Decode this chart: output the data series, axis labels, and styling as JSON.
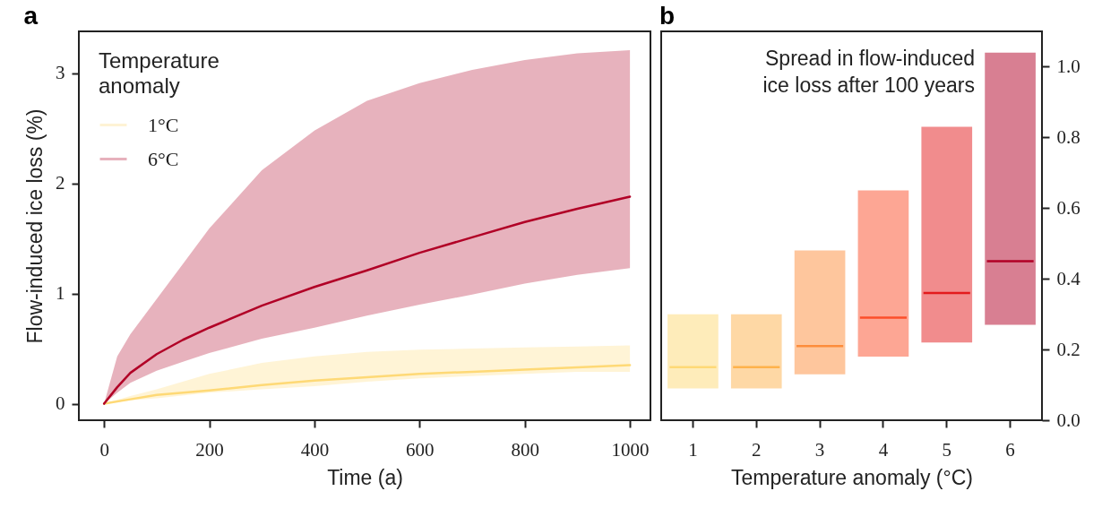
{
  "chart_data": [
    {
      "type": "line",
      "title": "a",
      "xlabel": "Time (a)",
      "ylabel": "Flow-induced ice loss (%)",
      "legend_title": "Temperature anomaly",
      "legend": "top left",
      "grid": false,
      "xlim": [
        -48,
        1039
      ],
      "xticks": [
        0,
        200,
        400,
        600,
        800,
        1000
      ],
      "ylim": [
        -0.15,
        3.38
      ],
      "yticks": [
        0,
        1,
        2,
        3
      ],
      "series": [
        {
          "name": "1°C",
          "color": "#fed976",
          "x": [
            0,
            50,
            100,
            200,
            300,
            400,
            500,
            600,
            700,
            800,
            900,
            1000
          ],
          "values": [
            0,
            0.04,
            0.08,
            0.12,
            0.17,
            0.21,
            0.24,
            0.27,
            0.29,
            0.31,
            0.33,
            0.35
          ],
          "lower": [
            0,
            0.03,
            0.05,
            0.1,
            0.13,
            0.16,
            0.2,
            0.23,
            0.25,
            0.27,
            0.29,
            0.29
          ],
          "upper": [
            0,
            0.07,
            0.13,
            0.27,
            0.37,
            0.43,
            0.47,
            0.49,
            0.5,
            0.51,
            0.52,
            0.53
          ]
        },
        {
          "name": "6°C",
          "color": "#b10026",
          "x": [
            0,
            25,
            50,
            100,
            150,
            200,
            300,
            400,
            500,
            600,
            700,
            800,
            900,
            1000
          ],
          "values": [
            0,
            0.15,
            0.28,
            0.45,
            0.58,
            0.69,
            0.89,
            1.06,
            1.21,
            1.37,
            1.51,
            1.65,
            1.77,
            1.88
          ],
          "lower": [
            0,
            0.1,
            0.19,
            0.3,
            0.38,
            0.46,
            0.59,
            0.69,
            0.8,
            0.9,
            0.99,
            1.09,
            1.17,
            1.23
          ],
          "upper": [
            0,
            0.43,
            0.63,
            0.95,
            1.27,
            1.59,
            2.12,
            2.48,
            2.75,
            2.91,
            3.03,
            3.12,
            3.18,
            3.21
          ]
        }
      ]
    },
    {
      "type": "box",
      "title": "b",
      "xlabel": "Temperature anomaly (°C)",
      "annotations": [
        "Spread in flow-induced ice loss after 100 years"
      ],
      "categories": [
        "1",
        "2",
        "3",
        "4",
        "5",
        "6"
      ],
      "colors": [
        "#fed976",
        "#feb24c",
        "#fd8d3c",
        "#fc4e2a",
        "#e31a1c",
        "#b10026"
      ],
      "ylim": [
        0,
        1.1
      ],
      "yticks": [
        {
          "value": 0,
          "label": "0.0"
        },
        0.2,
        0.4,
        0.6,
        0.8,
        {
          "value": 1,
          "label": "1.0"
        }
      ],
      "boxes": [
        {
          "low": 0.09,
          "q1": 0.09,
          "median": 0.15,
          "q3": 0.3,
          "high": 0.3
        },
        {
          "low": 0.09,
          "q1": 0.09,
          "median": 0.15,
          "q3": 0.3,
          "high": 0.3
        },
        {
          "low": 0.13,
          "q1": 0.13,
          "median": 0.21,
          "q3": 0.48,
          "high": 0.48
        },
        {
          "low": 0.18,
          "q1": 0.18,
          "median": 0.29,
          "q3": 0.65,
          "high": 0.65
        },
        {
          "low": 0.22,
          "q1": 0.22,
          "median": 0.36,
          "q3": 0.83,
          "high": 0.83
        },
        {
          "low": 0.27,
          "q1": 0.27,
          "median": 0.45,
          "q3": 1.04,
          "high": 1.04
        }
      ]
    }
  ]
}
